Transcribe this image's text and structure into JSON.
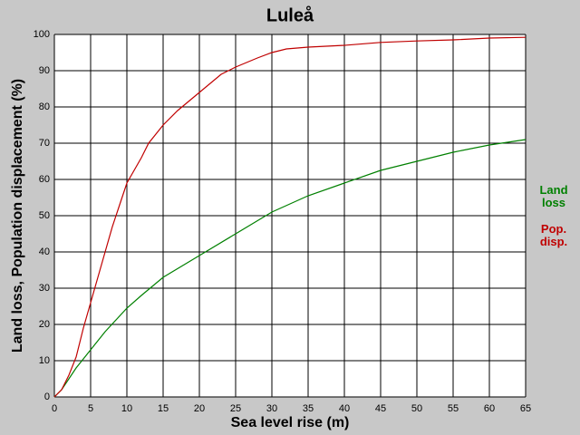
{
  "chart_data": {
    "type": "line",
    "title": "Luleå",
    "xlabel": "Sea level rise (m)",
    "ylabel": "Land loss, Population displacement (%)",
    "xlim": [
      0,
      65
    ],
    "ylim": [
      0,
      100
    ],
    "xticks": [
      0,
      5,
      10,
      15,
      20,
      25,
      30,
      35,
      40,
      45,
      50,
      55,
      60,
      65
    ],
    "yticks": [
      0,
      10,
      20,
      30,
      40,
      50,
      60,
      70,
      80,
      90,
      100
    ],
    "grid": true,
    "series": [
      {
        "name": "Land loss",
        "color": "#008000",
        "x": [
          0,
          1,
          2,
          3,
          4,
          5,
          7,
          10,
          12,
          15,
          20,
          25,
          30,
          35,
          40,
          45,
          50,
          55,
          60,
          65
        ],
        "values": [
          0,
          2,
          5,
          8,
          10.5,
          13,
          18,
          24.5,
          28,
          33,
          39,
          45,
          51,
          55.5,
          59,
          62.5,
          65,
          67.5,
          69.5,
          71
        ]
      },
      {
        "name": "Pop. disp.",
        "color": "#c00000",
        "x": [
          0,
          1,
          2,
          3,
          4,
          5,
          6,
          7,
          8,
          9,
          10,
          12,
          13,
          15,
          17,
          20,
          23,
          25,
          28,
          30,
          32,
          35,
          40,
          45,
          50,
          55,
          60,
          65
        ],
        "values": [
          0,
          2,
          6,
          11,
          19,
          26,
          33,
          40,
          47,
          53,
          59,
          66,
          70,
          75,
          79,
          84,
          89,
          91,
          93.5,
          95,
          96,
          96.5,
          97,
          97.8,
          98.2,
          98.5,
          99,
          99.2
        ]
      }
    ]
  }
}
